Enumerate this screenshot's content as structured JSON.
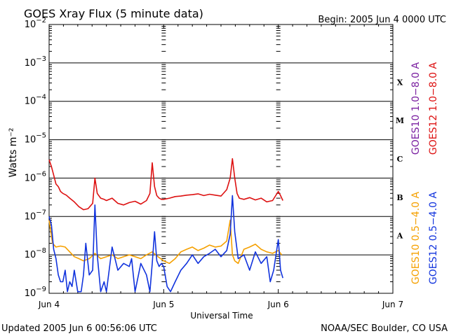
{
  "header": {
    "title": "GOES Xray Flux (5 minute data)",
    "begin": "Begin:  2005 Jun 4 0000 UTC"
  },
  "footer": {
    "updated": "Updated 2005 Jun  6 00:56:06 UTC",
    "source": "NOAA/SEC Boulder, CO USA"
  },
  "colors": {
    "goes10_long": "#7a1fa0",
    "goes12_long": "#dd1111",
    "goes10_short": "#f5a000",
    "goes12_short": "#1133dd",
    "grid": "#000000"
  },
  "chart_data": {
    "type": "line",
    "title": "GOES Xray Flux (5 minute data)",
    "xlabel": "Universal Time",
    "ylabel": "Watts m⁻²",
    "y_scale": "log",
    "ylim": [
      1e-09,
      0.01
    ],
    "xlim_days": [
      0,
      3
    ],
    "x_ticks": [
      "Jun 4",
      "Jun 5",
      "Jun 6",
      "Jun 7"
    ],
    "y_ticks": [
      {
        "base": "10",
        "exp": "−9",
        "value": 1e-09
      },
      {
        "base": "10",
        "exp": "−8",
        "value": 1e-08
      },
      {
        "base": "10",
        "exp": "−7",
        "value": 1e-07
      },
      {
        "base": "10",
        "exp": "−6",
        "value": 1e-06
      },
      {
        "base": "10",
        "exp": "−5",
        "value": 1e-05
      },
      {
        "base": "10",
        "exp": "−4",
        "value": 0.0001
      },
      {
        "base": "10",
        "exp": "−3",
        "value": 0.001
      },
      {
        "base": "10",
        "exp": "−2",
        "value": 0.01
      }
    ],
    "flare_classes": [
      {
        "label": "A",
        "value": 1e-08
      },
      {
        "label": "B",
        "value": 1e-07
      },
      {
        "label": "C",
        "value": 1e-06
      },
      {
        "label": "M",
        "value": 1e-05
      },
      {
        "label": "X",
        "value": 0.0001
      }
    ],
    "legend": [
      {
        "name": "GOES10 1.0−8.0 A",
        "color": "#7a1fa0"
      },
      {
        "name": "GOES12 1.0−8.0 A",
        "color": "#dd1111"
      },
      {
        "name": "GOES10 0.5−4.0 A",
        "color": "#f5a000"
      },
      {
        "name": "GOES12 0.5−4.0 A",
        "color": "#1133dd"
      }
    ],
    "series": [
      {
        "name": "GOES12 1.0−8.0 A",
        "color": "#dd1111",
        "x": [
          0.0,
          0.02,
          0.04,
          0.06,
          0.08,
          0.1,
          0.12,
          0.15,
          0.18,
          0.22,
          0.26,
          0.3,
          0.34,
          0.38,
          0.4,
          0.42,
          0.45,
          0.48,
          0.5,
          0.55,
          0.6,
          0.65,
          0.7,
          0.75,
          0.8,
          0.85,
          0.88,
          0.9,
          0.92,
          0.94,
          0.96,
          0.98,
          1.0,
          1.05,
          1.1,
          1.15,
          1.2,
          1.25,
          1.3,
          1.35,
          1.4,
          1.45,
          1.5,
          1.55,
          1.58,
          1.6,
          1.62,
          1.64,
          1.66,
          1.7,
          1.75,
          1.8,
          1.85,
          1.9,
          1.95,
          2.0,
          2.02,
          2.04
        ],
        "y": [
          3e-06,
          2e-06,
          1.2e-06,
          7e-07,
          6e-07,
          4.5e-07,
          4e-07,
          3.6e-07,
          3e-07,
          2.4e-07,
          1.8e-07,
          1.5e-07,
          1.6e-07,
          2.2e-07,
          1e-06,
          4e-07,
          3e-07,
          2.8e-07,
          2.6e-07,
          3e-07,
          2.2e-07,
          2e-07,
          2.3e-07,
          2.5e-07,
          2.1e-07,
          2.6e-07,
          4e-07,
          2.5e-06,
          6e-07,
          3.5e-07,
          3e-07,
          2.8e-07,
          2.8e-07,
          3e-07,
          3.3e-07,
          3.4e-07,
          3.6e-07,
          3.7e-07,
          3.9e-07,
          3.5e-07,
          3.8e-07,
          3.6e-07,
          3.4e-07,
          5e-07,
          1e-06,
          3.2e-06,
          1e-06,
          4e-07,
          3e-07,
          2.8e-07,
          3.1e-07,
          2.7e-07,
          3e-07,
          2.4e-07,
          2.6e-07,
          4.5e-07,
          3.5e-07,
          2.6e-07
        ]
      },
      {
        "name": "GOES10 0.5−4.0 A",
        "color": "#f5a000",
        "x": [
          0.0,
          0.03,
          0.06,
          0.1,
          0.14,
          0.18,
          0.22,
          0.26,
          0.3,
          0.35,
          0.4,
          0.45,
          0.5,
          0.55,
          0.6,
          0.65,
          0.7,
          0.75,
          0.8,
          0.85,
          0.9,
          0.95,
          1.0,
          1.05,
          1.1,
          1.15,
          1.2,
          1.25,
          1.3,
          1.35,
          1.4,
          1.45,
          1.5,
          1.55,
          1.58,
          1.6,
          1.62,
          1.65,
          1.7,
          1.75,
          1.8,
          1.85,
          1.9,
          1.95,
          2.0,
          2.03
        ],
        "y": [
          8e-08,
          2e-08,
          1.6e-08,
          1.7e-08,
          1.6e-08,
          1.2e-08,
          9e-09,
          8e-09,
          7e-09,
          8e-09,
          1.1e-08,
          8e-09,
          9e-09,
          1e-08,
          8e-09,
          9e-09,
          1e-08,
          9e-09,
          8e-09,
          1e-08,
          1.2e-08,
          9e-09,
          7e-09,
          6e-09,
          8e-09,
          1.2e-08,
          1.4e-08,
          1.6e-08,
          1.3e-08,
          1.5e-08,
          1.8e-08,
          1.6e-08,
          1.7e-08,
          2.3e-08,
          8e-08,
          1e-08,
          7e-09,
          6e-09,
          1.4e-08,
          1.6e-08,
          1.9e-08,
          1.4e-08,
          1.2e-08,
          1.1e-08,
          1.3e-08,
          1e-08
        ]
      },
      {
        "name": "GOES12 0.5−4.0 A",
        "color": "#1133dd",
        "x": [
          0.0,
          0.02,
          0.04,
          0.06,
          0.08,
          0.1,
          0.12,
          0.14,
          0.16,
          0.18,
          0.2,
          0.22,
          0.25,
          0.28,
          0.3,
          0.32,
          0.35,
          0.38,
          0.4,
          0.42,
          0.45,
          0.48,
          0.5,
          0.55,
          0.6,
          0.65,
          0.7,
          0.72,
          0.75,
          0.8,
          0.85,
          0.88,
          0.9,
          0.92,
          0.94,
          0.96,
          0.98,
          1.0,
          1.03,
          1.06,
          1.1,
          1.15,
          1.2,
          1.25,
          1.3,
          1.35,
          1.4,
          1.45,
          1.5,
          1.55,
          1.58,
          1.6,
          1.62,
          1.65,
          1.7,
          1.75,
          1.8,
          1.85,
          1.9,
          1.93,
          1.96,
          2.0,
          2.02,
          2.04
        ],
        "y": [
          1e-07,
          6e-08,
          1.4e-08,
          8e-09,
          3e-09,
          2e-09,
          2e-09,
          4e-09,
          1.1e-09,
          2e-09,
          1.5e-09,
          4e-09,
          1.1e-09,
          1.1e-09,
          3e-09,
          2e-08,
          3e-09,
          4e-09,
          2e-07,
          1e-08,
          1.1e-09,
          2e-09,
          1.1e-09,
          1.6e-08,
          4e-09,
          6e-09,
          5e-09,
          8e-09,
          1.1e-09,
          6e-09,
          3e-09,
          1.1e-09,
          6e-09,
          4e-08,
          7e-09,
          5e-09,
          6e-09,
          5e-09,
          1.5e-09,
          1.1e-09,
          2e-09,
          4e-09,
          6e-09,
          1e-08,
          6e-09,
          9e-09,
          1.1e-08,
          1.4e-08,
          9e-09,
          1.3e-08,
          3.5e-08,
          3.5e-07,
          4e-08,
          8e-09,
          1e-08,
          4e-09,
          1.2e-08,
          6e-09,
          9e-09,
          2e-09,
          4e-09,
          2.5e-08,
          4e-09,
          2.5e-09
        ]
      }
    ]
  }
}
